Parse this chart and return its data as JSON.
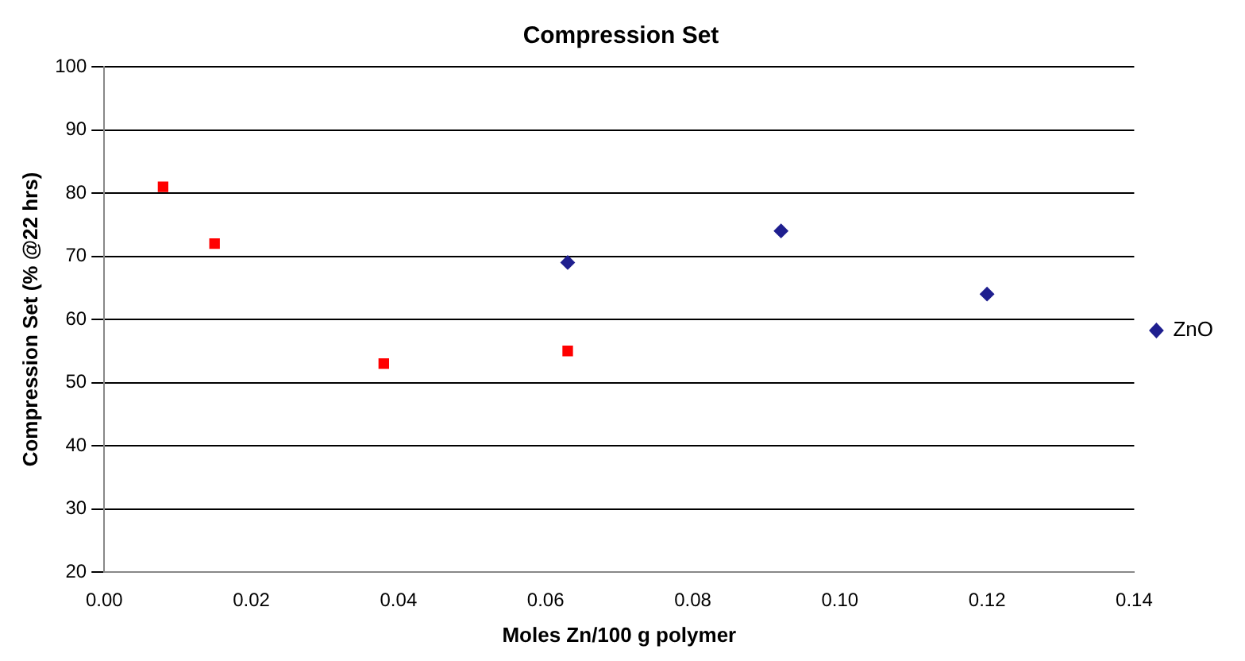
{
  "chart_data": {
    "type": "scatter",
    "title": "Compression Set",
    "xlabel": "Moles Zn/100 g polymer",
    "ylabel": "Compression Set (% @22 hrs)",
    "series": [
      {
        "color": "#ff0000",
        "marker": "square",
        "x": [
          0.008,
          0.015,
          0.038,
          0.063
        ],
        "values": [
          81,
          72,
          53,
          55
        ]
      },
      {
        "name": "ZnO",
        "color": "#1f1f8f",
        "marker": "diamond",
        "x": [
          0.063,
          0.092,
          0.12
        ],
        "values": [
          69,
          74,
          64
        ]
      }
    ],
    "xlim": [
      0,
      0.14
    ],
    "xticks": [
      {
        "value": 0,
        "label": "0.00"
      },
      {
        "value": 0.02,
        "label": "0.02"
      },
      {
        "value": 0.04,
        "label": "0.04"
      },
      {
        "value": 0.06,
        "label": "0.06"
      },
      {
        "value": 0.08,
        "label": "0.08"
      },
      {
        "value": 0.1,
        "label": "0.10"
      },
      {
        "value": 0.12,
        "label": "0.12"
      },
      {
        "value": 0.14,
        "label": "0.14"
      }
    ],
    "ylim": [
      20,
      100
    ],
    "yticks": [
      20,
      30,
      40,
      50,
      60,
      70,
      80,
      90,
      100
    ],
    "grid": "y",
    "legend": "right"
  }
}
